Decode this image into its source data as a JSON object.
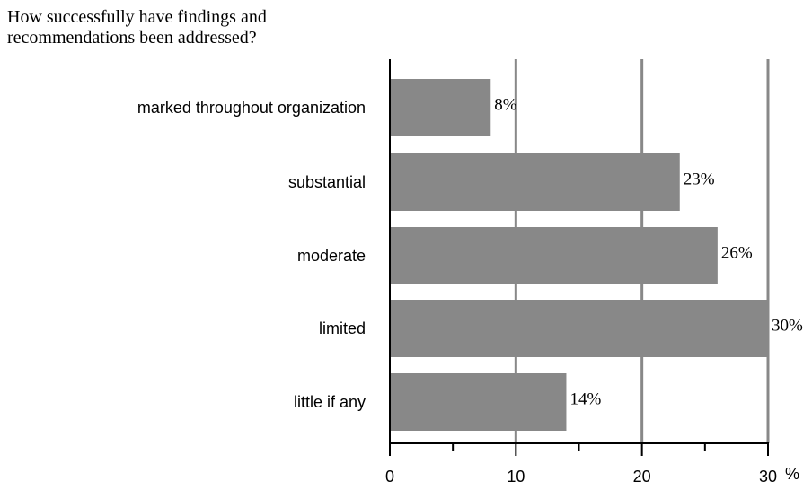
{
  "chart_data": {
    "type": "bar",
    "orientation": "horizontal",
    "title_lines": [
      "How successfully have findings and",
      "recommendations been addressed?"
    ],
    "categories": [
      "marked throughout organization",
      "substantial",
      "moderate",
      "limited",
      "little if any"
    ],
    "values": [
      8,
      23,
      26,
      30,
      14
    ],
    "value_labels": [
      "8%",
      "23%",
      "26%",
      "30%",
      "14%"
    ],
    "xlim": [
      0,
      30
    ],
    "xticks": [
      0,
      10,
      20,
      30
    ],
    "xtick_labels": [
      "0",
      "10",
      "20",
      "30"
    ],
    "minor_xticks": [
      5,
      15,
      25
    ],
    "x_unit": "%",
    "grid": "vertical",
    "bar_color": "#888888",
    "grid_color": "#888888",
    "axis_color": "#000000"
  }
}
